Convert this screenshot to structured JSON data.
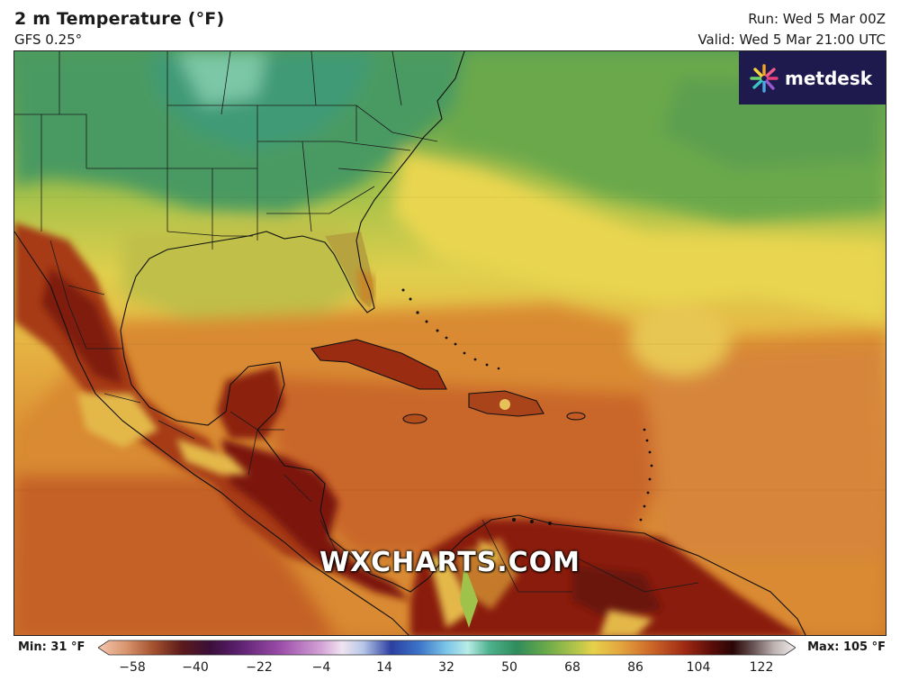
{
  "header": {
    "title": "2 m Temperature (°F)",
    "subtitle": "GFS 0.25°",
    "run": "Run: Wed 5 Mar 00Z",
    "valid": "Valid: Wed 5 Mar 21:00 UTC"
  },
  "branding": {
    "logo_text": "metdesk",
    "watermark": "WXCHARTS.COM"
  },
  "legend": {
    "min_label": "Min: 31 °F",
    "max_label": "Max: 105 °F",
    "ticks": [
      "−58",
      "−40",
      "−22",
      "−4",
      "14",
      "32",
      "50",
      "68",
      "86",
      "104",
      "122"
    ]
  },
  "colors": {
    "cold_green": "#2e8a5a",
    "mid_green": "#6ea64a",
    "yellow": "#e6d14a",
    "orange": "#d98a32",
    "warm": "#c25a22",
    "hot": "#8a1c10",
    "logo_bg": "#1f1a4e"
  }
}
